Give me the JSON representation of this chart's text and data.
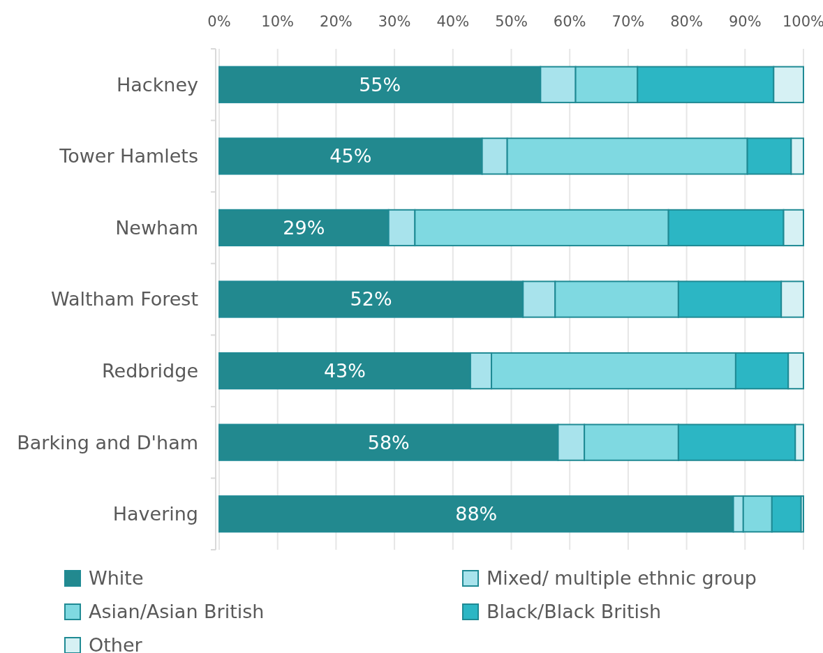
{
  "chart_data": {
    "type": "bar",
    "orientation": "horizontal",
    "stacked": true,
    "categories": [
      "Hackney",
      "Tower Hamlets",
      "Newham",
      "Waltham Forest",
      "Redbridge",
      "Barking and D'ham",
      "Havering"
    ],
    "series": [
      {
        "name": "White",
        "color": "#22898f",
        "values": [
          55,
          45,
          29,
          52,
          43,
          58,
          88
        ],
        "value_labels": [
          "55%",
          "45%",
          "29%",
          "52%",
          "43%",
          "58%",
          "88%"
        ]
      },
      {
        "name": "Mixed/ multiple ethnic group",
        "color": "#a8e3ec",
        "values": [
          6,
          4.3,
          4.5,
          5.5,
          3.6,
          4.5,
          1.7
        ]
      },
      {
        "name": "Asian/Asian British",
        "color": "#7fd9e1",
        "values": [
          10.6,
          41.1,
          43.4,
          21.1,
          41.8,
          16.1,
          4.9
        ]
      },
      {
        "name": "Black/Black British",
        "color": "#2cb6c4",
        "values": [
          23.3,
          7.5,
          19.7,
          17.6,
          9,
          20,
          5
        ]
      },
      {
        "name": "Other",
        "color": "#d6f1f4",
        "values": [
          5.1,
          2.1,
          3.4,
          3.8,
          2.6,
          1.4,
          0.4
        ]
      }
    ],
    "xlim": [
      0,
      100
    ],
    "xticks": [
      {
        "value": 0,
        "label": "0%"
      },
      {
        "value": 10,
        "label": "10%"
      },
      {
        "value": 20,
        "label": "20%"
      },
      {
        "value": 30,
        "label": "30%"
      },
      {
        "value": 40,
        "label": "40%"
      },
      {
        "value": 50,
        "label": "50%"
      },
      {
        "value": 60,
        "label": "60%"
      },
      {
        "value": 70,
        "label": "70%"
      },
      {
        "value": 80,
        "label": "80%"
      },
      {
        "value": 90,
        "label": "90%"
      },
      {
        "value": 100,
        "label": "100%"
      }
    ],
    "grid": "x",
    "legend": "bottom"
  }
}
